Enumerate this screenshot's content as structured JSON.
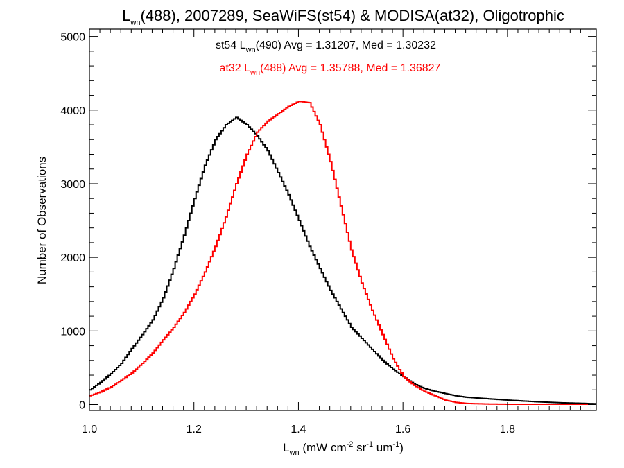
{
  "chart_data": {
    "type": "line",
    "title": {
      "main": "L",
      "sub": "wn",
      "rest": "(488), 2007289, SeaWiFS(st54) & MODISA(at32), Oligotrophic"
    },
    "xlabel": {
      "main": "L",
      "sub": "wn",
      "unit_a": " (mW cm",
      "sup1": "-2",
      "unit_b": " sr",
      "sup2": "-1",
      "unit_c": " um",
      "sup3": "-1",
      "unit_d": ")"
    },
    "ylabel": "Number of Observations",
    "xlim": [
      1.0,
      1.97
    ],
    "ylim": [
      -80,
      5100
    ],
    "xticks": [
      1.0,
      1.2,
      1.4,
      1.6,
      1.8
    ],
    "xtick_labels": [
      "1.0",
      "1.2",
      "1.4",
      "1.6",
      "1.8"
    ],
    "yticks": [
      0,
      1000,
      2000,
      3000,
      4000,
      5000
    ],
    "ytick_labels": [
      "0",
      "1000",
      "2000",
      "3000",
      "4000",
      "5000"
    ],
    "legend": [
      {
        "pre": "st54 L",
        "sub": "wn",
        "post": "(490) Avg = 1.31207, Med = 1.30232",
        "color": "#000000"
      },
      {
        "pre": "at32 L",
        "sub": "wn",
        "post": "(488) Avg = 1.35788, Med = 1.36827",
        "color": "#ff0000"
      }
    ],
    "series": [
      {
        "color": "#000000",
        "x": [
          1.0,
          1.02,
          1.04,
          1.06,
          1.08,
          1.1,
          1.12,
          1.14,
          1.16,
          1.18,
          1.2,
          1.22,
          1.24,
          1.26,
          1.28,
          1.3,
          1.32,
          1.34,
          1.36,
          1.38,
          1.4,
          1.42,
          1.44,
          1.46,
          1.48,
          1.5,
          1.52,
          1.54,
          1.56,
          1.58,
          1.6,
          1.62,
          1.64,
          1.66,
          1.68,
          1.7,
          1.72,
          1.74,
          1.76,
          1.8,
          1.85,
          1.9,
          1.95,
          1.97
        ],
        "y": [
          200,
          300,
          420,
          560,
          760,
          950,
          1150,
          1450,
          1850,
          2300,
          2800,
          3250,
          3600,
          3800,
          3900,
          3800,
          3650,
          3450,
          3150,
          2850,
          2500,
          2150,
          1850,
          1550,
          1300,
          1050,
          900,
          750,
          600,
          480,
          380,
          280,
          220,
          180,
          150,
          120,
          100,
          90,
          80,
          60,
          40,
          25,
          15,
          10
        ]
      },
      {
        "color": "#ff0000",
        "x": [
          1.0,
          1.02,
          1.04,
          1.06,
          1.08,
          1.1,
          1.12,
          1.14,
          1.16,
          1.18,
          1.2,
          1.22,
          1.24,
          1.26,
          1.28,
          1.3,
          1.32,
          1.34,
          1.36,
          1.38,
          1.4,
          1.42,
          1.44,
          1.46,
          1.48,
          1.5,
          1.52,
          1.54,
          1.56,
          1.58,
          1.6,
          1.62,
          1.64,
          1.66,
          1.68,
          1.7,
          1.72,
          1.76,
          1.8,
          1.85,
          1.9,
          1.97
        ],
        "y": [
          120,
          170,
          240,
          330,
          430,
          560,
          700,
          880,
          1050,
          1250,
          1500,
          1800,
          2150,
          2550,
          3000,
          3400,
          3700,
          3850,
          3950,
          4050,
          4120,
          4100,
          3800,
          3300,
          2700,
          2100,
          1650,
          1280,
          950,
          620,
          380,
          260,
          180,
          120,
          60,
          30,
          15,
          8,
          5,
          5,
          5,
          5
        ]
      }
    ]
  }
}
